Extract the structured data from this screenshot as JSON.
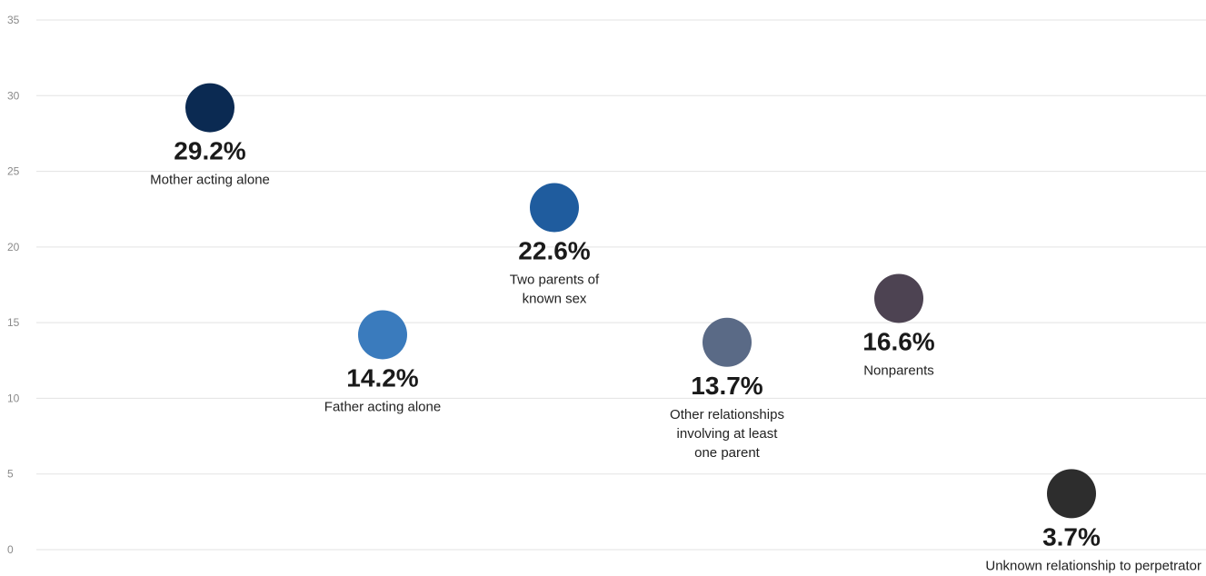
{
  "chart_data": {
    "type": "scatter",
    "title": "",
    "xlabel": "",
    "ylabel": "",
    "ylim": [
      0,
      35
    ],
    "yticks": [
      0,
      5,
      10,
      15,
      20,
      25,
      30,
      35
    ],
    "grid": true,
    "legend": "none",
    "points": [
      {
        "category": "Mother acting alone",
        "label_lines": [
          "Mother acting alone"
        ],
        "value": 29.2,
        "value_label": "29.2%",
        "color": "#0b2a52"
      },
      {
        "category": "Father acting alone",
        "label_lines": [
          "Father acting alone"
        ],
        "value": 14.2,
        "value_label": "14.2%",
        "color": "#3a7bbd"
      },
      {
        "category": "Two parents of known sex",
        "label_lines": [
          "Two parents of",
          "known sex"
        ],
        "value": 22.6,
        "value_label": "22.6%",
        "color": "#1f5c9e"
      },
      {
        "category": "Other relationships involving at least one parent",
        "label_lines": [
          "Other relationships",
          "involving at least",
          "one parent"
        ],
        "value": 13.7,
        "value_label": "13.7%",
        "color": "#5a6a86"
      },
      {
        "category": "Nonparents",
        "label_lines": [
          "Nonparents"
        ],
        "value": 16.6,
        "value_label": "16.6%",
        "color": "#4d4352"
      },
      {
        "category": "Unknown relationship to perpetrator",
        "label_lines": [
          "Unknown relationship to perpetrator"
        ],
        "value": 3.7,
        "value_label": "3.7%",
        "color": "#2d2d2d"
      }
    ]
  }
}
